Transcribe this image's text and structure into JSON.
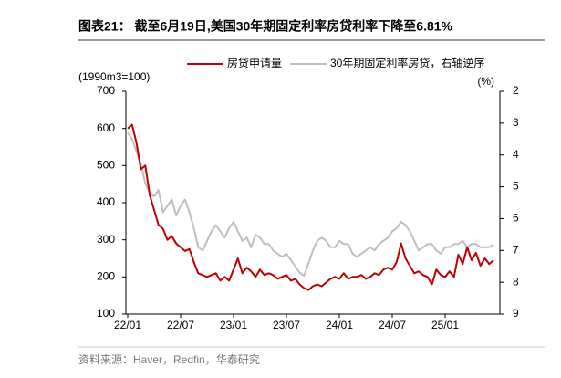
{
  "title": "图表21： 截至6月19日,美国30年期固定利率房贷利率下降至6.81%",
  "source": "资料来源：Haver，Redfin，华泰研究",
  "chart_data": {
    "type": "line",
    "y_label": "(1990m3=100)",
    "y2_label": "(%)",
    "categories": [
      "22/01",
      null,
      null,
      null,
      null,
      null,
      null,
      null,
      null,
      null,
      null,
      null,
      "22/07",
      null,
      null,
      null,
      null,
      null,
      null,
      null,
      null,
      null,
      null,
      null,
      "23/01",
      null,
      null,
      null,
      null,
      null,
      null,
      null,
      null,
      null,
      null,
      null,
      "23/07",
      null,
      null,
      null,
      null,
      null,
      null,
      null,
      null,
      null,
      null,
      null,
      "24/01",
      null,
      null,
      null,
      null,
      null,
      null,
      null,
      null,
      null,
      null,
      null,
      "24/07",
      null,
      null,
      null,
      null,
      null,
      null,
      null,
      null,
      null,
      null,
      null,
      "25/01",
      null,
      null,
      null,
      null,
      null,
      null,
      null,
      null,
      null,
      null,
      null
    ],
    "series": [
      {
        "name": "房贷申请量",
        "color": "#c00000",
        "values": [
          600,
          610,
          560,
          490,
          500,
          420,
          380,
          340,
          330,
          300,
          310,
          290,
          280,
          270,
          275,
          240,
          210,
          205,
          200,
          205,
          210,
          190,
          200,
          190,
          220,
          250,
          210,
          225,
          215,
          200,
          220,
          205,
          210,
          205,
          195,
          200,
          205,
          190,
          195,
          180,
          170,
          165,
          175,
          180,
          175,
          185,
          195,
          200,
          195,
          210,
          195,
          200,
          200,
          205,
          195,
          200,
          210,
          205,
          220,
          225,
          220,
          240,
          290,
          250,
          230,
          210,
          215,
          205,
          200,
          180,
          220,
          205,
          200,
          215,
          200,
          260,
          235,
          280,
          245,
          265,
          230,
          250,
          235,
          245
        ]
      },
      {
        "name": "30年期固定利率房贷，右轴逆序",
        "color": "#bfbfbf",
        "axis": "y2",
        "values": [
          3.3,
          3.5,
          3.9,
          4.3,
          4.9,
          5.2,
          5.3,
          5.1,
          5.8,
          5.6,
          5.4,
          5.9,
          5.6,
          5.4,
          5.8,
          6.3,
          6.9,
          7.0,
          6.7,
          6.4,
          6.2,
          6.4,
          6.6,
          6.3,
          6.1,
          6.4,
          6.7,
          6.6,
          6.9,
          6.5,
          6.6,
          6.8,
          6.8,
          7.0,
          7.1,
          7.2,
          7.1,
          7.3,
          7.5,
          7.7,
          7.8,
          7.4,
          7.0,
          6.7,
          6.6,
          6.7,
          6.9,
          6.9,
          6.7,
          6.8,
          6.8,
          7.1,
          7.2,
          7.1,
          7.0,
          6.9,
          7.0,
          6.8,
          6.7,
          6.6,
          6.4,
          6.3,
          6.1,
          6.2,
          6.4,
          6.7,
          7.0,
          6.9,
          6.8,
          6.8,
          7.0,
          7.1,
          6.9,
          6.9,
          6.8,
          6.8,
          6.7,
          6.9,
          6.8,
          6.8,
          6.9,
          6.9,
          6.9,
          6.81
        ]
      }
    ],
    "ylim": [
      100,
      700
    ],
    "yticks": [
      100,
      200,
      300,
      400,
      500,
      600,
      700
    ],
    "y2lim": [
      2,
      9
    ],
    "y2ticks": [
      2,
      3,
      4,
      5,
      6,
      7,
      8,
      9
    ],
    "y2_reverse": true,
    "grid": false
  }
}
